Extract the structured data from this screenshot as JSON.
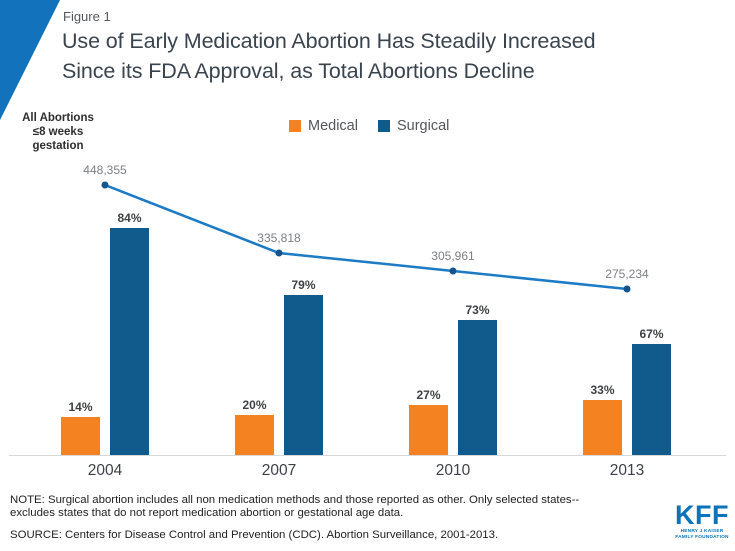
{
  "figure_label": "Figure 1",
  "header": {
    "title_line1": "Use of Early Medication Abortion Has Steadily Increased",
    "title_line2": "Since its FDA Approval, as Total Abortions Decline"
  },
  "annotation": "All Abortions\n≤8 weeks\ngestation",
  "chart_data": {
    "type": "bar",
    "subtype": "grouped-bars-with-overlaid-line",
    "categories": [
      "2004",
      "2007",
      "2010",
      "2013"
    ],
    "series": [
      {
        "name": "Medical",
        "kind": "bar",
        "unit": "%",
        "color": "#F58220",
        "values": [
          14,
          20,
          27,
          33
        ],
        "labels": [
          "14%",
          "20%",
          "27%",
          "33%"
        ]
      },
      {
        "name": "Surgical",
        "kind": "bar",
        "unit": "%",
        "color": "#115A8C",
        "values": [
          84,
          79,
          73,
          67
        ],
        "labels": [
          "84%",
          "79%",
          "73%",
          "67%"
        ]
      },
      {
        "name": "All Abortions ≤8 weeks gestation",
        "kind": "line",
        "unit": "count",
        "color": "#1D7AC5",
        "marker_color": "#14548C",
        "values": [
          448355,
          335818,
          305961,
          275234
        ],
        "labels": [
          "448,355",
          "335,818",
          "305,961",
          "275,234"
        ]
      }
    ],
    "axes": {
      "x_ticks": [
        "2004",
        "2007",
        "2010",
        "2013"
      ],
      "y_axis_visible": false,
      "grid": false,
      "scale_note": "bars and line share one absolute-count scale; bar height = percent x year total, bars labeled with percent"
    },
    "legend": {
      "position": "top-center",
      "entries": [
        "Medical",
        "Surgical"
      ]
    }
  },
  "footer": {
    "note": "NOTE: Surgical abortion includes all non medication methods and those reported as other. Only selected states--\nexcludes states that do not report medication abortion or gestational age data.",
    "source": "SOURCE: Centers for Disease Control and Prevention (CDC). Abortion Surveillance, 2001-2013.",
    "logo_text": "KFF",
    "logo_tagline": "HENRY J KAISER\nFAMILY FOUNDATION"
  },
  "colors": {
    "accent_triangle": "#1273BC",
    "kff_blue": "#0C72BA",
    "bar_medical": "#F58220",
    "bar_surgical": "#115A8C",
    "line_blue": "#1D7AC5",
    "title_text": "#3A444E",
    "baseline_gray": "#D8D8D8"
  }
}
